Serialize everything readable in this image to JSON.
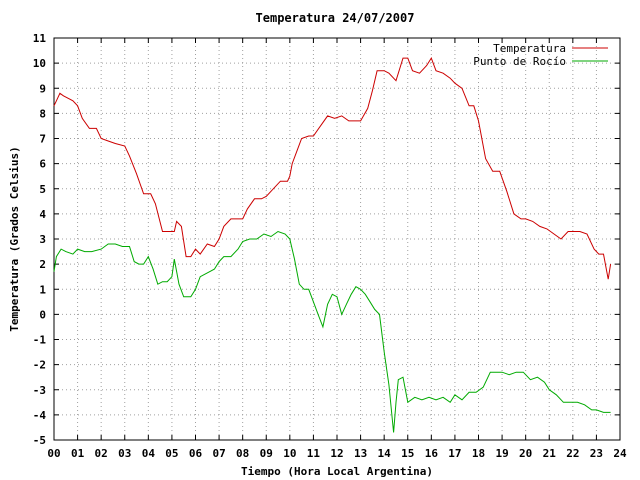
{
  "chart_data": {
    "type": "line",
    "title": "Temperatura 24/07/2007",
    "xlabel": "Tiempo (Hora Local Argentina)",
    "ylabel": "Temperatura (Grados Celsius)",
    "xlim": [
      0,
      24
    ],
    "ylim": [
      -5,
      11
    ],
    "x_ticks": [
      "00",
      "01",
      "02",
      "03",
      "04",
      "05",
      "06",
      "07",
      "08",
      "09",
      "10",
      "11",
      "12",
      "13",
      "14",
      "15",
      "16",
      "17",
      "18",
      "19",
      "20",
      "21",
      "22",
      "23",
      "24"
    ],
    "y_ticks": [
      -5,
      -4,
      -3,
      -2,
      -1,
      0,
      1,
      2,
      3,
      4,
      5,
      6,
      7,
      8,
      9,
      10,
      11
    ],
    "grid": true,
    "legend_position": "top-right",
    "series": [
      {
        "name": "Temperatura",
        "color": "#cc0000",
        "x": [
          0.0,
          0.1,
          0.25,
          0.4,
          0.6,
          0.8,
          1.0,
          1.2,
          1.5,
          1.8,
          2.0,
          2.3,
          2.6,
          3.0,
          3.2,
          3.5,
          3.8,
          4.1,
          4.3,
          4.6,
          4.9,
          5.1,
          5.2,
          5.4,
          5.6,
          5.8,
          6.0,
          6.2,
          6.5,
          6.8,
          7.0,
          7.2,
          7.5,
          7.8,
          8.0,
          8.2,
          8.5,
          8.8,
          9.0,
          9.3,
          9.6,
          9.9,
          10.0,
          10.1,
          10.3,
          10.5,
          10.8,
          11.0,
          11.3,
          11.6,
          11.9,
          12.2,
          12.5,
          12.8,
          13.0,
          13.3,
          13.5,
          13.7,
          14.0,
          14.2,
          14.5,
          14.8,
          15.0,
          15.2,
          15.5,
          15.8,
          16.0,
          16.2,
          16.5,
          16.8,
          17.0,
          17.3,
          17.6,
          17.8,
          18.0,
          18.3,
          18.6,
          18.9,
          19.2,
          19.5,
          19.8,
          20.0,
          20.3,
          20.6,
          20.9,
          21.2,
          21.5,
          21.8,
          22.0,
          22.3,
          22.6,
          22.9,
          23.1,
          23.3,
          23.5,
          23.6
        ],
        "y": [
          8.3,
          8.5,
          8.8,
          8.7,
          8.6,
          8.5,
          8.3,
          7.8,
          7.4,
          7.4,
          7.0,
          6.9,
          6.8,
          6.7,
          6.3,
          5.6,
          4.8,
          4.8,
          4.4,
          3.3,
          3.3,
          3.3,
          3.7,
          3.5,
          2.3,
          2.3,
          2.6,
          2.4,
          2.8,
          2.7,
          3.0,
          3.5,
          3.8,
          3.8,
          3.8,
          4.2,
          4.6,
          4.6,
          4.7,
          5.0,
          5.3,
          5.3,
          5.5,
          6.0,
          6.5,
          7.0,
          7.1,
          7.1,
          7.5,
          7.9,
          7.8,
          7.9,
          7.7,
          7.7,
          7.7,
          8.2,
          8.9,
          9.7,
          9.7,
          9.6,
          9.3,
          10.2,
          10.2,
          9.7,
          9.6,
          9.9,
          10.2,
          9.7,
          9.6,
          9.4,
          9.2,
          9.0,
          8.3,
          8.3,
          7.7,
          6.2,
          5.7,
          5.7,
          4.9,
          4.0,
          3.8,
          3.8,
          3.7,
          3.5,
          3.4,
          3.2,
          3.0,
          3.3,
          3.3,
          3.3,
          3.2,
          2.6,
          2.4,
          2.4,
          1.4,
          2.0
        ]
      },
      {
        "name": "Punto de Rocío",
        "color": "#00aa00",
        "x": [
          0.0,
          0.1,
          0.3,
          0.5,
          0.8,
          1.0,
          1.3,
          1.6,
          2.0,
          2.3,
          2.6,
          2.9,
          3.2,
          3.4,
          3.6,
          3.8,
          4.0,
          4.2,
          4.4,
          4.6,
          4.8,
          5.0,
          5.1,
          5.3,
          5.5,
          5.8,
          6.0,
          6.2,
          6.4,
          6.6,
          6.8,
          7.0,
          7.2,
          7.5,
          7.8,
          8.0,
          8.3,
          8.6,
          8.9,
          9.2,
          9.5,
          9.8,
          10.0,
          10.2,
          10.4,
          10.6,
          10.8,
          11.0,
          11.2,
          11.4,
          11.6,
          11.8,
          12.0,
          12.2,
          12.4,
          12.6,
          12.8,
          13.0,
          13.2,
          13.4,
          13.6,
          13.8,
          14.0,
          14.2,
          14.4,
          14.5,
          14.6,
          14.8,
          15.0,
          15.3,
          15.6,
          15.9,
          16.2,
          16.5,
          16.8,
          17.0,
          17.3,
          17.6,
          17.9,
          18.2,
          18.5,
          18.8,
          19.0,
          19.3,
          19.6,
          19.9,
          20.2,
          20.5,
          20.8,
          21.0,
          21.3,
          21.6,
          21.9,
          22.2,
          22.5,
          22.8,
          23.0,
          23.3,
          23.6
        ],
        "y": [
          1.7,
          2.3,
          2.6,
          2.5,
          2.4,
          2.6,
          2.5,
          2.5,
          2.6,
          2.8,
          2.8,
          2.7,
          2.7,
          2.1,
          2.0,
          2.0,
          2.3,
          1.8,
          1.2,
          1.3,
          1.3,
          1.5,
          2.2,
          1.2,
          0.7,
          0.7,
          1.0,
          1.5,
          1.6,
          1.7,
          1.8,
          2.1,
          2.3,
          2.3,
          2.6,
          2.9,
          3.0,
          3.0,
          3.2,
          3.1,
          3.3,
          3.2,
          3.0,
          2.2,
          1.2,
          1.0,
          1.0,
          0.5,
          0.0,
          -0.5,
          0.4,
          0.8,
          0.7,
          0.0,
          0.4,
          0.8,
          1.1,
          1.0,
          0.8,
          0.5,
          0.2,
          0.0,
          -1.5,
          -2.8,
          -4.7,
          -3.5,
          -2.6,
          -2.5,
          -3.5,
          -3.3,
          -3.4,
          -3.3,
          -3.4,
          -3.3,
          -3.5,
          -3.2,
          -3.4,
          -3.1,
          -3.1,
          -2.9,
          -2.3,
          -2.3,
          -2.3,
          -2.4,
          -2.3,
          -2.3,
          -2.6,
          -2.5,
          -2.7,
          -3.0,
          -3.2,
          -3.5,
          -3.5,
          -3.5,
          -3.6,
          -3.8,
          -3.8,
          -3.9,
          -3.9
        ]
      }
    ]
  }
}
